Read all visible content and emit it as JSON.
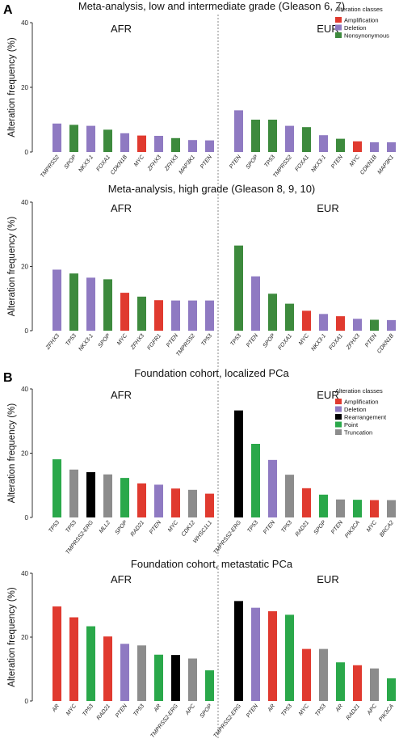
{
  "panel_letters": [
    "A",
    "B"
  ],
  "y_axis_label": "Alteration frequency (%)",
  "legends": [
    {
      "title": "Alteration classes",
      "items": [
        {
          "name": "Amplification",
          "color": "#e03a2f"
        },
        {
          "name": "Deletion",
          "color": "#8f7ac2"
        },
        {
          "name": "Nonsynonymous",
          "color": "#3d8a3d"
        }
      ]
    },
    {
      "title": "Alteration classes",
      "items": [
        {
          "name": "Amplification",
          "color": "#e03a2f"
        },
        {
          "name": "Deletion",
          "color": "#8f7ac2"
        },
        {
          "name": "Rearrangement",
          "color": "#000000"
        },
        {
          "name": "Point",
          "color": "#2aa84a"
        },
        {
          "name": "Truncation",
          "color": "#8c8c8c"
        }
      ]
    }
  ],
  "class_colors": {
    "Amplification": "#e03a2f",
    "Deletion": "#8f7ac2",
    "Nonsynonymous": "#3d8a3d",
    "Rearrangement": "#000000",
    "Point": "#2aa84a",
    "Truncation": "#8c8c8c"
  },
  "chart_data": [
    {
      "type": "bar",
      "title": "Meta-analysis, low and intermediate grade (Gleason 6, 7)",
      "ylabel": "Alteration frequency (%)",
      "ylim": [
        0,
        40
      ],
      "yticks": [
        0,
        20,
        40
      ],
      "groups": [
        {
          "name": "AFR",
          "categories": [
            "TMPRSS2",
            "SPOP",
            "NKX3-1",
            "FOXA1",
            "CDKN1B",
            "MYC",
            "ZFHX3",
            "ZFHX3",
            "MAP3K1",
            "PTEN"
          ],
          "values": [
            8.8,
            8.4,
            8.1,
            6.9,
            5.8,
            5.1,
            5.0,
            4.3,
            3.7,
            3.6
          ],
          "classes": [
            "Deletion",
            "Nonsynonymous",
            "Deletion",
            "Nonsynonymous",
            "Deletion",
            "Amplification",
            "Deletion",
            "Nonsynonymous",
            "Deletion",
            "Deletion"
          ]
        },
        {
          "name": "EUR",
          "categories": [
            "PTEN",
            "SPOP",
            "TP53",
            "TMPRSS2",
            "FOXA1",
            "NKX3-1",
            "PTEN",
            "MYC",
            "CDKN1B",
            "MAP3K1"
          ],
          "values": [
            12.9,
            10.0,
            10.0,
            8.1,
            7.7,
            5.2,
            4.1,
            3.3,
            3.0,
            3.0
          ],
          "classes": [
            "Deletion",
            "Nonsynonymous",
            "Nonsynonymous",
            "Deletion",
            "Nonsynonymous",
            "Deletion",
            "Nonsynonymous",
            "Amplification",
            "Deletion",
            "Deletion"
          ]
        }
      ]
    },
    {
      "type": "bar",
      "title": "Meta-analysis, high grade (Gleason 8, 9, 10)",
      "ylabel": "Alteration frequency (%)",
      "ylim": [
        0,
        40
      ],
      "yticks": [
        0,
        20,
        40
      ],
      "groups": [
        {
          "name": "AFR",
          "categories": [
            "ZFHX3",
            "TP53",
            "NKX3-1",
            "SPOP",
            "MYC",
            "ZFHX3",
            "FGFR1",
            "PTEN",
            "TMPRSS2",
            "TP53"
          ],
          "values": [
            19.0,
            17.8,
            16.5,
            16.0,
            11.8,
            10.6,
            9.5,
            9.4,
            9.4,
            9.4
          ],
          "classes": [
            "Deletion",
            "Nonsynonymous",
            "Deletion",
            "Nonsynonymous",
            "Amplification",
            "Nonsynonymous",
            "Amplification",
            "Deletion",
            "Deletion",
            "Deletion"
          ]
        },
        {
          "name": "EUR",
          "categories": [
            "TP53",
            "PTEN",
            "SPOP",
            "FOXA1",
            "MYC",
            "NKX3-1",
            "FOXA1",
            "ZFHX3",
            "PTEN",
            "CDKN1B"
          ],
          "values": [
            26.5,
            16.9,
            11.5,
            8.4,
            6.2,
            5.2,
            4.5,
            3.7,
            3.4,
            3.3
          ],
          "classes": [
            "Nonsynonymous",
            "Deletion",
            "Nonsynonymous",
            "Nonsynonymous",
            "Amplification",
            "Deletion",
            "Amplification",
            "Deletion",
            "Nonsynonymous",
            "Deletion"
          ]
        }
      ]
    },
    {
      "type": "bar",
      "title": "Foundation cohort, localized PCa",
      "ylabel": "Alteration frequency (%)",
      "ylim": [
        0,
        40
      ],
      "yticks": [
        0,
        20,
        40
      ],
      "groups": [
        {
          "name": "AFR",
          "categories": [
            "TP53",
            "TP53",
            "TMPRSS2-ERG",
            "MLL2",
            "SPOP",
            "RAD21",
            "PTEN",
            "MYC",
            "CDK12",
            "WHSC1L1"
          ],
          "values": [
            18.1,
            14.9,
            14.1,
            13.4,
            12.3,
            10.6,
            10.2,
            9.0,
            8.6,
            7.4
          ],
          "classes": [
            "Point",
            "Truncation",
            "Rearrangement",
            "Truncation",
            "Point",
            "Amplification",
            "Deletion",
            "Amplification",
            "Truncation",
            "Amplification"
          ]
        },
        {
          "name": "EUR",
          "categories": [
            "TMPRSS2-ERG",
            "TP53",
            "PTEN",
            "TP53",
            "RAD21",
            "SPOP",
            "PTEN",
            "PIK3CA",
            "MYC",
            "BRCA2"
          ],
          "values": [
            33.3,
            22.9,
            17.9,
            13.3,
            9.1,
            7.1,
            5.6,
            5.5,
            5.4,
            5.4
          ],
          "classes": [
            "Rearrangement",
            "Point",
            "Deletion",
            "Truncation",
            "Amplification",
            "Point",
            "Truncation",
            "Point",
            "Amplification",
            "Truncation"
          ]
        }
      ]
    },
    {
      "type": "bar",
      "title": "Foundation cohort, metastatic PCa",
      "ylabel": "Alteration frequency (%)",
      "ylim": [
        0,
        40
      ],
      "yticks": [
        0,
        20,
        40
      ],
      "groups": [
        {
          "name": "AFR",
          "categories": [
            "AR",
            "MYC",
            "TP53",
            "RAD21",
            "PTEN",
            "TP53",
            "AR",
            "TMPRSS2-ERG",
            "APC",
            "SPOP"
          ],
          "values": [
            29.6,
            26.2,
            23.4,
            20.2,
            17.9,
            17.4,
            14.5,
            14.4,
            13.3,
            9.6
          ],
          "classes": [
            "Amplification",
            "Amplification",
            "Point",
            "Amplification",
            "Deletion",
            "Truncation",
            "Point",
            "Rearrangement",
            "Truncation",
            "Point"
          ]
        },
        {
          "name": "EUR",
          "categories": [
            "TMPRSS2-ERG",
            "PTEN",
            "AR",
            "TP53",
            "MYC",
            "TP53",
            "AR",
            "RAD21",
            "APC",
            "PIK3CA"
          ],
          "values": [
            31.3,
            29.2,
            28.1,
            27.0,
            16.3,
            16.3,
            12.1,
            11.2,
            10.2,
            7.1
          ],
          "classes": [
            "Rearrangement",
            "Deletion",
            "Amplification",
            "Point",
            "Amplification",
            "Truncation",
            "Point",
            "Amplification",
            "Truncation",
            "Point"
          ]
        }
      ]
    }
  ]
}
